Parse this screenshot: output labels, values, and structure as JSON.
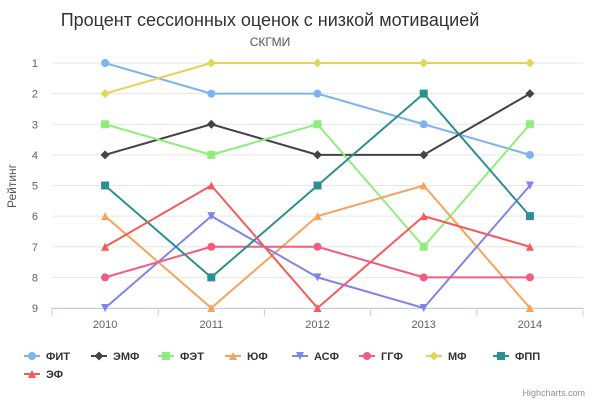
{
  "chart_data": {
    "type": "line",
    "title": "Процент сессионных оценок с низкой мотивацией",
    "subtitle": "СКГМИ",
    "ylabel": "Рейтинг",
    "xlabel": "",
    "categories": [
      "2010",
      "2011",
      "2012",
      "2013",
      "2014"
    ],
    "ylim": [
      1,
      9
    ],
    "y_reversed": true,
    "yticks": [
      "1",
      "2",
      "3",
      "4",
      "5",
      "6",
      "7",
      "8",
      "9"
    ],
    "grid": true,
    "legend_position": "bottom-left",
    "series": [
      {
        "name": "ФИТ",
        "color": "#7cb5ec",
        "marker": "circle",
        "values": [
          1,
          2,
          2,
          3,
          4
        ]
      },
      {
        "name": "ЭМФ",
        "color": "#434348",
        "marker": "diamond",
        "values": [
          4,
          3,
          4,
          4,
          2
        ]
      },
      {
        "name": "ФЭТ",
        "color": "#90ed7d",
        "marker": "square",
        "values": [
          3,
          4,
          3,
          7,
          3
        ]
      },
      {
        "name": "ЮФ",
        "color": "#f7a35c",
        "marker": "triangle",
        "values": [
          6,
          9,
          6,
          5,
          9
        ]
      },
      {
        "name": "АСФ",
        "color": "#8085e9",
        "marker": "triangle-down",
        "values": [
          9,
          6,
          8,
          9,
          5
        ]
      },
      {
        "name": "ГГФ",
        "color": "#f15c80",
        "marker": "circle",
        "values": [
          8,
          7,
          7,
          8,
          8
        ]
      },
      {
        "name": "МФ",
        "color": "#e4d354",
        "marker": "diamond",
        "values": [
          2,
          1,
          1,
          1,
          1
        ]
      },
      {
        "name": "ФПП",
        "color": "#2b908f",
        "marker": "square",
        "values": [
          5,
          8,
          5,
          2,
          6
        ]
      },
      {
        "name": "ЭФ",
        "color": "#f45b5b",
        "marker": "triangle",
        "values": [
          7,
          5,
          9,
          6,
          7
        ]
      }
    ],
    "credits": "Highcharts.com"
  }
}
